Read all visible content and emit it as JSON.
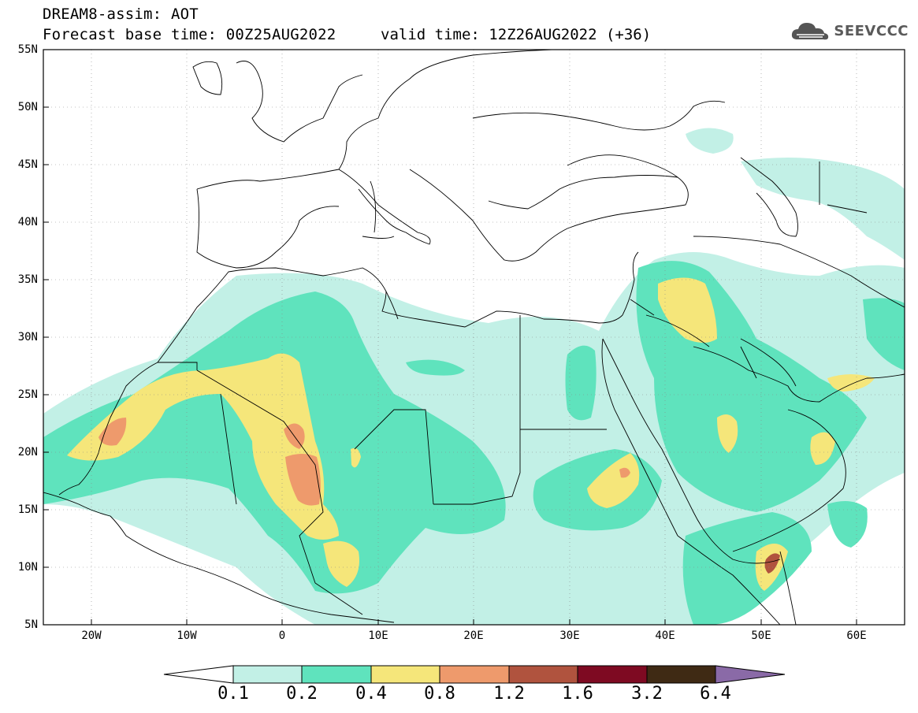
{
  "header": {
    "title": "DREAM8-assim: AOT",
    "base_time": "Forecast base time: 00Z25AUG2022",
    "valid_time": "valid time: 12Z26AUG2022 (+36)",
    "logo_text": "SEEVCCC",
    "logo_icon": "cloud-icon"
  },
  "map": {
    "lon_range": [
      -25,
      65
    ],
    "lat_range": [
      5,
      55
    ],
    "lat_labels": [
      "55N",
      "50N",
      "45N",
      "40N",
      "35N",
      "30N",
      "25N",
      "20N",
      "15N",
      "10N",
      "5N"
    ],
    "lon_labels": [
      "20W",
      "10W",
      "0",
      "10E",
      "20E",
      "30E",
      "40E",
      "50E",
      "60E"
    ],
    "background_color": "#ffffff",
    "coastline_color": "#000000"
  },
  "colorbar": {
    "colors": [
      "#ffffff",
      "#c2f0e6",
      "#5fe3bd",
      "#f5e67a",
      "#ee9a6c",
      "#b0533e",
      "#7e0a22",
      "#3f2a14",
      "#8a6aa7"
    ],
    "labels": [
      "0.1",
      "0.2",
      "0.4",
      "0.8",
      "1.2",
      "1.6",
      "3.2",
      "6.4"
    ]
  }
}
